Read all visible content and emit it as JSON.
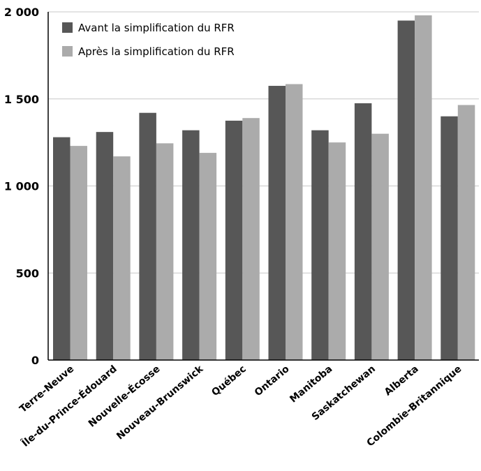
{
  "chart_data": {
    "type": "bar",
    "categories": [
      "Terre-Neuve",
      "Île-du-Prince-Édouard",
      "Nouvelle-Écosse",
      "Nouveau-Brunswick",
      "Québec",
      "Ontario",
      "Manitoba",
      "Saskatchewan",
      "Alberta",
      "Colombie-Britannique"
    ],
    "series": [
      {
        "name": "Avant la simplification du RFR",
        "color": "#575757",
        "values": [
          1280,
          1310,
          1420,
          1320,
          1375,
          1575,
          1320,
          1475,
          1950,
          1400
        ]
      },
      {
        "name": "Après la simplification du RFR",
        "color": "#ababab",
        "values": [
          1230,
          1170,
          1245,
          1190,
          1390,
          1585,
          1250,
          1300,
          1980,
          1465
        ]
      }
    ],
    "title": "",
    "xlabel": "",
    "ylabel": "",
    "ylim": [
      0,
      2000
    ],
    "yticks": [
      0,
      500,
      1000,
      1500,
      2000
    ],
    "ytick_labels": [
      "0",
      "500",
      "1 000",
      "1 500",
      "2 000"
    ],
    "grid": true,
    "legend_position": "top-left"
  }
}
